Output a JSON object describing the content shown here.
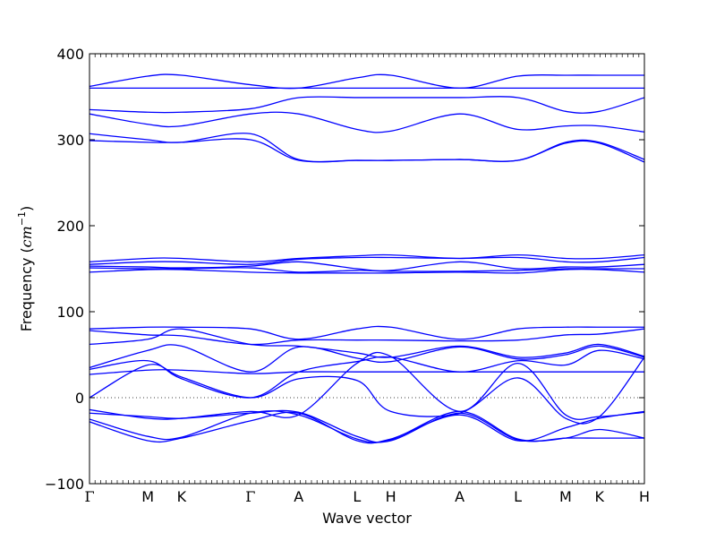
{
  "chart_data": {
    "type": "line",
    "title": "",
    "xlabel": "Wave vector",
    "ylabel": "Frequency",
    "ylabel_unit": "cm",
    "ylabel_unit_exp": "−1",
    "ylim": [
      -100,
      400
    ],
    "yticks": [
      -100,
      0,
      100,
      200,
      300,
      400
    ],
    "ytick_labels": [
      "−100",
      "0",
      "100",
      "200",
      "300",
      "400"
    ],
    "x_range": [
      0,
      10
    ],
    "kpoints": [
      {
        "label": "Γ",
        "x": 0.0
      },
      {
        "label": "M",
        "x": 1.05
      },
      {
        "label": "K",
        "x": 1.66
      },
      {
        "label": "Γ",
        "x": 2.9
      },
      {
        "label": "A",
        "x": 3.77
      },
      {
        "label": "L",
        "x": 4.82
      },
      {
        "label": "H",
        "x": 5.43
      },
      {
        "label": "A",
        "x": 6.67
      },
      {
        "label": "L",
        "x": 7.72
      },
      {
        "label": "M",
        "x": 8.58
      },
      {
        "label": "K",
        "x": 9.19
      },
      {
        "label": "H",
        "x": 10.0
      }
    ],
    "zero_line": true,
    "line_color": "#0000ff",
    "series": [
      {
        "x": [
          0,
          1.05,
          1.66,
          2.9,
          3.77,
          4.82,
          5.43,
          6.67,
          7.72,
          8.58,
          9.19,
          10
        ],
        "y": [
          362,
          374,
          375,
          364,
          360,
          372,
          375,
          360,
          374,
          375,
          375,
          375
        ]
      },
      {
        "x": [
          0,
          1.05,
          1.66,
          2.9,
          3.77,
          4.82,
          5.43,
          6.67,
          7.72,
          8.58,
          9.19,
          10
        ],
        "y": [
          360,
          360,
          360,
          360,
          360,
          360,
          360,
          360,
          360,
          360,
          360,
          360
        ]
      },
      {
        "x": [
          0,
          1.05,
          1.66,
          2.9,
          3.77,
          4.82,
          5.43,
          6.67,
          7.72,
          8.58,
          9.19,
          10
        ],
        "y": [
          335,
          332,
          332,
          336,
          349,
          349,
          349,
          349,
          349,
          333,
          333,
          349
        ]
      },
      {
        "x": [
          0,
          1.05,
          1.66,
          2.9,
          3.77,
          4.82,
          5.43,
          6.67,
          7.72,
          8.58,
          9.19,
          10
        ],
        "y": [
          330,
          318,
          316,
          330,
          330,
          312,
          310,
          330,
          312,
          316,
          316,
          309
        ]
      },
      {
        "x": [
          0,
          1.05,
          1.66,
          2.9,
          3.77,
          4.82,
          5.43,
          6.67,
          7.72,
          8.58,
          9.19,
          10
        ],
        "y": [
          307,
          300,
          297,
          307,
          277,
          276,
          276,
          277,
          276,
          297,
          297,
          277
        ]
      },
      {
        "x": [
          0,
          1.05,
          1.66,
          2.9,
          3.77,
          4.82,
          5.43,
          6.67,
          7.72,
          8.58,
          9.19,
          10
        ],
        "y": [
          299,
          297,
          297,
          300,
          276,
          276,
          276,
          277,
          276,
          296,
          296,
          274
        ]
      },
      {
        "x": [
          0,
          1.05,
          1.66,
          2.9,
          3.77,
          4.82,
          5.43,
          6.67,
          7.72,
          8.58,
          9.19,
          10
        ],
        "y": [
          158,
          162,
          162,
          158,
          162,
          165,
          166,
          162,
          166,
          162,
          162,
          166
        ]
      },
      {
        "x": [
          0,
          1.05,
          1.66,
          2.9,
          3.77,
          4.82,
          5.43,
          6.67,
          7.72,
          8.58,
          9.19,
          10
        ],
        "y": [
          155,
          158,
          158,
          155,
          161,
          163,
          163,
          162,
          163,
          158,
          158,
          163
        ]
      },
      {
        "x": [
          0,
          1.05,
          1.66,
          2.9,
          3.77,
          4.82,
          5.43,
          6.67,
          7.72,
          8.58,
          9.19,
          10
        ],
        "y": [
          153,
          152,
          151,
          153,
          158,
          150,
          148,
          158,
          150,
          152,
          152,
          155
        ]
      },
      {
        "x": [
          0,
          1.05,
          1.66,
          2.9,
          3.77,
          4.82,
          5.43,
          6.67,
          7.72,
          8.58,
          9.19,
          10
        ],
        "y": [
          151,
          150,
          150,
          151,
          146,
          148,
          147,
          147,
          148,
          150,
          150,
          150
        ]
      },
      {
        "x": [
          0,
          1.05,
          1.66,
          2.9,
          3.77,
          4.82,
          5.43,
          6.67,
          7.72,
          8.58,
          9.19,
          10
        ],
        "y": [
          146,
          149,
          149,
          146,
          145,
          145,
          145,
          146,
          145,
          149,
          149,
          146
        ]
      },
      {
        "x": [
          0,
          1.05,
          1.66,
          2.9,
          3.77,
          4.82,
          5.43,
          6.67,
          7.72,
          8.58,
          9.19,
          10
        ],
        "y": [
          80,
          82,
          82,
          80,
          68,
          80,
          82,
          68,
          80,
          82,
          82,
          82
        ]
      },
      {
        "x": [
          0,
          1.05,
          1.66,
          2.9,
          3.77,
          4.82,
          5.43,
          6.67,
          7.72,
          8.58,
          9.19,
          10
        ],
        "y": [
          78,
          73,
          72,
          62,
          67,
          67,
          67,
          66,
          67,
          73,
          74,
          80
        ]
      },
      {
        "x": [
          0,
          1.05,
          1.66,
          2.9,
          3.77,
          4.82,
          5.43,
          6.67,
          7.72,
          8.58,
          9.19,
          10
        ],
        "y": [
          62,
          68,
          80,
          62,
          60,
          52,
          47,
          60,
          47,
          52,
          62,
          48
        ]
      },
      {
        "x": [
          0,
          1.05,
          1.66,
          2.9,
          3.77,
          4.82,
          5.43,
          6.67,
          7.72,
          8.58,
          9.19,
          10
        ],
        "y": [
          35,
          55,
          60,
          30,
          59,
          46,
          42,
          59,
          45,
          50,
          60,
          47
        ]
      },
      {
        "x": [
          0,
          1.05,
          1.66,
          2.9,
          3.77,
          4.82,
          5.43,
          6.67,
          7.72,
          8.58,
          9.19,
          10
        ],
        "y": [
          33,
          43,
          22,
          0,
          30,
          42,
          47,
          30,
          43,
          38,
          55,
          45
        ]
      },
      {
        "x": [
          0,
          1.05,
          1.66,
          2.9,
          3.77,
          4.82,
          5.43,
          6.67,
          7.72,
          8.58,
          9.19,
          10
        ],
        "y": [
          27,
          32,
          32,
          28,
          30,
          30,
          30,
          30,
          30,
          30,
          30,
          30
        ]
      },
      {
        "x": [
          0,
          1.05,
          1.66,
          2.9,
          3.77,
          4.82,
          5.43,
          6.67,
          7.72,
          8.58,
          9.19,
          10
        ],
        "y": [
          0,
          38,
          24,
          0,
          22,
          20,
          -16,
          -18,
          23,
          -24,
          -22,
          47
        ]
      },
      {
        "x": [
          0,
          1.05,
          1.66,
          2.9,
          3.77,
          4.82,
          5.43,
          6.67,
          7.72,
          8.58,
          9.19,
          10
        ],
        "y": [
          -14,
          -24,
          -24,
          -16,
          -20,
          40,
          48,
          -16,
          40,
          -20,
          -22,
          -17
        ]
      },
      {
        "x": [
          0,
          1.05,
          1.66,
          2.9,
          3.77,
          4.82,
          5.43,
          6.67,
          7.72,
          8.58,
          9.19,
          10
        ],
        "y": [
          -18,
          -22,
          -24,
          -18,
          -17,
          -45,
          -50,
          -18,
          -49,
          -47,
          -47,
          -47
        ]
      },
      {
        "x": [
          0,
          1.05,
          1.66,
          2.9,
          3.77,
          4.82,
          5.43,
          6.67,
          7.72,
          8.58,
          9.19,
          10
        ],
        "y": [
          -25,
          -45,
          -46,
          -18,
          -20,
          -48,
          -49,
          -16,
          -48,
          -47,
          -37,
          -47
        ]
      },
      {
        "x": [
          0,
          1.05,
          1.66,
          2.9,
          3.77,
          4.82,
          5.43,
          6.67,
          7.72,
          8.58,
          9.19,
          10
        ],
        "y": [
          -28,
          -50,
          -47,
          -27,
          -18,
          -50,
          -48,
          -20,
          -50,
          -35,
          -24,
          -16
        ]
      }
    ]
  }
}
